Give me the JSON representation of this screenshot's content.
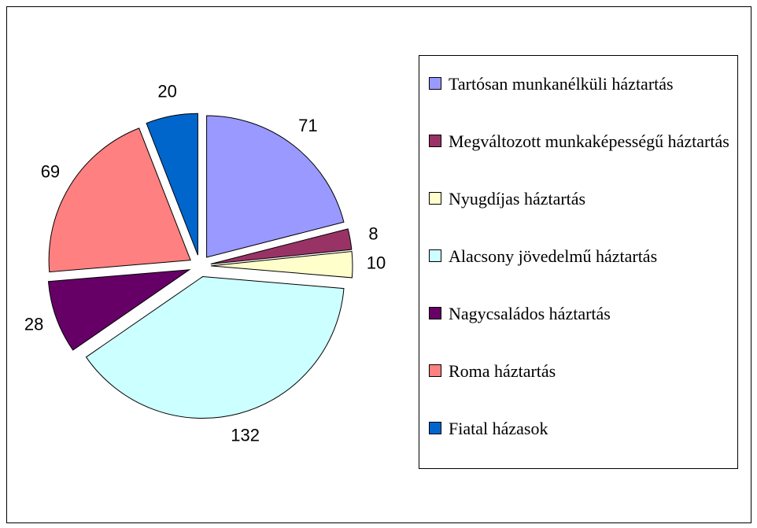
{
  "chart_data": {
    "type": "pie",
    "categories": [
      "Tartósan munkanélküli háztartás",
      "Megváltozott munkaképességű háztartás",
      "Nyugdíjas háztartás",
      "Alacsony jövedelmű háztartás",
      "Nagycsaládos háztartás",
      "Roma háztartás",
      "Fiatal házasok"
    ],
    "values": [
      71,
      8,
      10,
      132,
      28,
      69,
      20
    ],
    "colors": [
      "#9999ff",
      "#993366",
      "#ffffcc",
      "#ccffff",
      "#660066",
      "#ff8080",
      "#0066cc"
    ],
    "legend": "right"
  }
}
